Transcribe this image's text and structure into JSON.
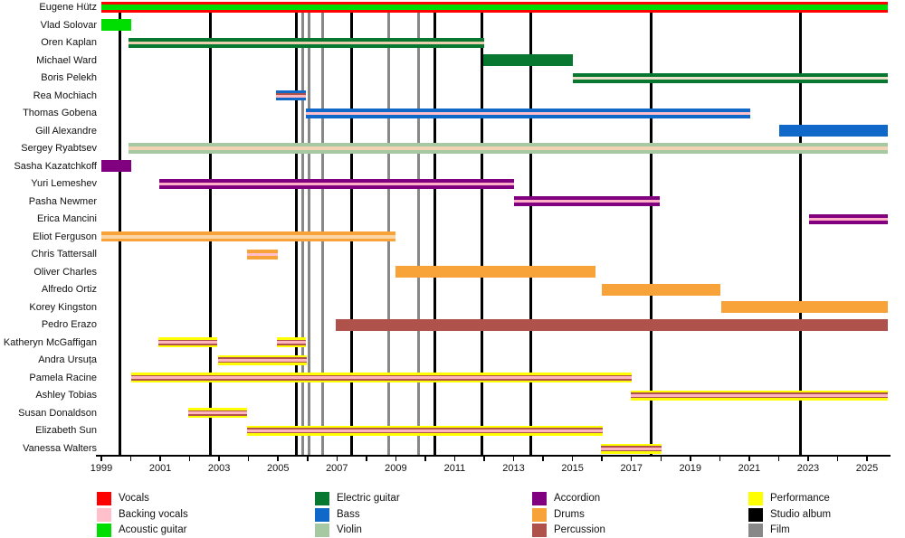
{
  "chart_data": {
    "type": "timeline",
    "x_axis": {
      "start_year": 1999,
      "end_year": 2025.72,
      "label_years": [
        1999,
        2001,
        2003,
        2005,
        2007,
        2009,
        2011,
        2013,
        2015,
        2017,
        2019,
        2021,
        2023,
        2025
      ]
    },
    "members": [
      {
        "name": "Eugene Hütz",
        "pattern": "vocals_acoustic",
        "periods": [
          [
            1999.0,
            2025.72
          ]
        ]
      },
      {
        "name": "Vlad Solovar",
        "pattern": "acoustic",
        "periods": [
          [
            1999.0,
            2000.0
          ]
        ]
      },
      {
        "name": "Oren Kaplan",
        "pattern": "eguitar_backing",
        "periods": [
          [
            1999.93,
            2012.01
          ]
        ]
      },
      {
        "name": "Michael Ward",
        "pattern": "eguitar",
        "periods": [
          [
            2011.98,
            2015.02
          ]
        ]
      },
      {
        "name": "Boris Pelekh",
        "pattern": "eguitar_backing2",
        "periods": [
          [
            2015.0,
            2025.72
          ]
        ]
      },
      {
        "name": "Rea Mochiach",
        "pattern": "bass_perc_backing",
        "periods": [
          [
            2004.94,
            2005.96
          ]
        ]
      },
      {
        "name": "Thomas Gobena",
        "pattern": "bass_backing",
        "periods": [
          [
            2005.96,
            2021.04
          ]
        ]
      },
      {
        "name": "Gill Alexandre",
        "pattern": "bass",
        "periods": [
          [
            2022.03,
            2025.72
          ]
        ]
      },
      {
        "name": "Sergey Ryabtsev",
        "pattern": "violin_backing",
        "periods": [
          [
            1999.93,
            2025.72
          ]
        ]
      },
      {
        "name": "Sasha Kazatchkoff",
        "pattern": "accordion",
        "periods": [
          [
            1999.0,
            2000.0
          ]
        ]
      },
      {
        "name": "Yuri Lemeshev",
        "pattern": "accordion_backing",
        "periods": [
          [
            2000.98,
            2013.02
          ]
        ]
      },
      {
        "name": "Pasha Newmer",
        "pattern": "accordion_backing",
        "periods": [
          [
            2013.0,
            2017.95
          ]
        ]
      },
      {
        "name": "Erica Mancini",
        "pattern": "accordion_backing",
        "periods": [
          [
            2023.04,
            2025.72
          ]
        ]
      },
      {
        "name": "Eliot Ferguson",
        "pattern": "drums_backing",
        "periods": [
          [
            1999.0,
            2009.0
          ]
        ]
      },
      {
        "name": "Chris Tattersall",
        "pattern": "drums_pink",
        "periods": [
          [
            2003.96,
            2005.0
          ]
        ]
      },
      {
        "name": "Oliver Charles",
        "pattern": "drums",
        "periods": [
          [
            2009.0,
            2015.79
          ]
        ]
      },
      {
        "name": "Alfredo Ortiz",
        "pattern": "drums",
        "periods": [
          [
            2016.0,
            2020.03
          ]
        ]
      },
      {
        "name": "Korey Kingston",
        "pattern": "drums",
        "periods": [
          [
            2020.06,
            2025.72
          ]
        ]
      },
      {
        "name": "Pedro Erazo",
        "pattern": "percussion",
        "periods": [
          [
            2006.97,
            2025.72
          ]
        ]
      },
      {
        "name": "Katheryn McGaffigan",
        "pattern": "performance",
        "periods": [
          [
            2000.95,
            2002.94
          ],
          [
            2004.97,
            2005.96
          ]
        ]
      },
      {
        "name": "Andra Ursuța",
        "pattern": "performance",
        "periods": [
          [
            2002.97,
            2005.99
          ]
        ]
      },
      {
        "name": "Pamela Racine",
        "pattern": "performance",
        "periods": [
          [
            2000.0,
            2017.02
          ]
        ]
      },
      {
        "name": "Ashley Tobias",
        "pattern": "performance",
        "periods": [
          [
            2016.99,
            2025.72
          ]
        ]
      },
      {
        "name": "Susan Donaldson",
        "pattern": "performance",
        "periods": [
          [
            2001.96,
            2003.96
          ]
        ]
      },
      {
        "name": "Elizabeth Sun",
        "pattern": "performance",
        "periods": [
          [
            2003.96,
            2016.03
          ]
        ]
      },
      {
        "name": "Vanessa Walters",
        "pattern": "performance",
        "periods": [
          [
            2015.97,
            2018.03
          ]
        ]
      }
    ],
    "studio_album_years": [
      1999.62,
      2002.7,
      2005.62,
      2007.49,
      2010.32,
      2011.92,
      2013.58,
      2017.66,
      2022.73
    ],
    "film_years": [
      2005.83,
      2006.05,
      2006.51,
      2008.75,
      2009.77
    ],
    "patterns": {
      "vocals_acoustic": {
        "stripes": [
          [
            "#fe0000",
            3
          ],
          [
            "#00dd00",
            6
          ],
          [
            "#fe0000",
            3
          ]
        ]
      },
      "acoustic": {
        "stripes": [
          [
            "#00dd00",
            13
          ]
        ]
      },
      "eguitar_backing": {
        "stripes": [
          [
            "#087830",
            4
          ],
          [
            "#ecd0b0",
            3
          ],
          [
            "#087830",
            4
          ]
        ]
      },
      "eguitar": {
        "stripes": [
          [
            "#087830",
            13
          ]
        ]
      },
      "eguitar_backing2": {
        "stripes": [
          [
            "#087830",
            4
          ],
          [
            "#e8e0c8",
            3
          ],
          [
            "#087830",
            4
          ]
        ]
      },
      "bass_perc_backing": {
        "stripes": [
          [
            "#1068c8",
            3
          ],
          [
            "#b0524c",
            2
          ],
          [
            "#ffb6c1",
            3
          ],
          [
            "#1068c8",
            3
          ]
        ]
      },
      "bass_backing": {
        "stripes": [
          [
            "#1068c8",
            4
          ],
          [
            "#ffc0cb",
            3
          ],
          [
            "#1068c8",
            4
          ]
        ]
      },
      "bass": {
        "stripes": [
          [
            "#1068c8",
            13
          ]
        ]
      },
      "violin_backing": {
        "stripes": [
          [
            "#a6c8a2",
            4
          ],
          [
            "#f2d4b4",
            4
          ],
          [
            "#a6c8a2",
            4
          ]
        ]
      },
      "accordion": {
        "stripes": [
          [
            "#800080",
            13
          ]
        ]
      },
      "accordion_backing": {
        "stripes": [
          [
            "#800080",
            4
          ],
          [
            "#ffb0c8",
            3
          ],
          [
            "#800080",
            4
          ]
        ]
      },
      "drums_backing": {
        "stripes": [
          [
            "#f8a33a",
            3.5
          ],
          [
            "#fbd6a4",
            4
          ],
          [
            "#f8a33a",
            3.5
          ]
        ]
      },
      "drums_pink": {
        "stripes": [
          [
            "#f8a33a",
            4
          ],
          [
            "#ffc0cb",
            3
          ],
          [
            "#f8a33a",
            4
          ]
        ]
      },
      "drums": {
        "stripes": [
          [
            "#f8a33a",
            13
          ]
        ]
      },
      "percussion": {
        "stripes": [
          [
            "#b0524c",
            13
          ]
        ]
      },
      "performance": {
        "stripes": [
          [
            "#ffff00",
            2.5
          ],
          [
            "#b0524c",
            1.5
          ],
          [
            "#ffb6c1",
            3
          ],
          [
            "#b0524c",
            1.5
          ],
          [
            "#ffff00",
            2.5
          ]
        ]
      }
    },
    "legend_columns": [
      [
        {
          "label": "Vocals",
          "color": "#fe0000"
        },
        {
          "label": "Backing vocals",
          "color": "#ffc0cb"
        },
        {
          "label": "Acoustic guitar",
          "color": "#00dd00"
        }
      ],
      [
        {
          "label": "Electric guitar",
          "color": "#087830"
        },
        {
          "label": "Bass",
          "color": "#1068c8"
        },
        {
          "label": "Violin",
          "color": "#a6c8a2"
        }
      ],
      [
        {
          "label": "Accordion",
          "color": "#800080"
        },
        {
          "label": "Drums",
          "color": "#f8a33a"
        },
        {
          "label": "Percussion",
          "color": "#b0524c"
        }
      ],
      [
        {
          "label": "Performance",
          "color": "#ffff00"
        },
        {
          "label": "Studio album",
          "color": "#000000"
        },
        {
          "label": "Film",
          "color": "#888888"
        }
      ]
    ],
    "event_line_colors": {
      "studio_album": "#000000",
      "film": "#888888"
    }
  }
}
